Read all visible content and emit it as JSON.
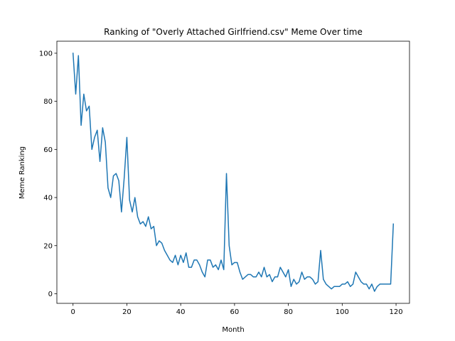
{
  "chart_data": {
    "type": "line",
    "title": "Ranking of \"Overly Attached Girlfriend.csv\" Meme Over time",
    "xlabel": "Month",
    "ylabel": "Meme Ranking",
    "xlim": [
      -6,
      125
    ],
    "ylim": [
      -4,
      105
    ],
    "xticks": [
      0,
      20,
      40,
      60,
      80,
      100,
      120
    ],
    "yticks": [
      0,
      20,
      40,
      60,
      80,
      100
    ],
    "grid": false,
    "series": [
      {
        "color": "#1f77b4",
        "x": [
          0,
          1,
          2,
          3,
          4,
          5,
          6,
          7,
          8,
          9,
          10,
          11,
          12,
          13,
          14,
          15,
          16,
          17,
          18,
          19,
          20,
          21,
          22,
          23,
          24,
          25,
          26,
          27,
          28,
          29,
          30,
          31,
          32,
          33,
          34,
          35,
          36,
          37,
          38,
          39,
          40,
          41,
          42,
          43,
          44,
          45,
          46,
          47,
          48,
          49,
          50,
          51,
          52,
          53,
          54,
          55,
          56,
          57,
          58,
          59,
          60,
          61,
          62,
          63,
          64,
          65,
          66,
          67,
          68,
          69,
          70,
          71,
          72,
          73,
          74,
          75,
          76,
          77,
          78,
          79,
          80,
          81,
          82,
          83,
          84,
          85,
          86,
          87,
          88,
          89,
          90,
          91,
          92,
          93,
          94,
          95,
          96,
          97,
          98,
          99,
          100,
          101,
          102,
          103,
          104,
          105,
          106,
          107,
          108,
          109,
          110,
          111,
          112,
          113,
          114,
          115,
          116,
          117,
          118,
          119
        ],
        "y": [
          100,
          83,
          99,
          70,
          83,
          76,
          78,
          60,
          65,
          68,
          55,
          69,
          63,
          44,
          40,
          49,
          50,
          47,
          34,
          48,
          65,
          39,
          34,
          40,
          32,
          29,
          30,
          28,
          32,
          27,
          28,
          20,
          22,
          21,
          18,
          16,
          14,
          13,
          16,
          12,
          16,
          13,
          17,
          11,
          11,
          14,
          14,
          12,
          9,
          7,
          14,
          14,
          11,
          12,
          10,
          14,
          10,
          50,
          20,
          12,
          13,
          13,
          9,
          6,
          7,
          8,
          8,
          7,
          7,
          9,
          7,
          11,
          7,
          8,
          5,
          7,
          7,
          11,
          9,
          7,
          10,
          3,
          6,
          4,
          5,
          9,
          6,
          7,
          7,
          6,
          4,
          5,
          18,
          6,
          4,
          3,
          2,
          3,
          3,
          3,
          4,
          4,
          5,
          3,
          4,
          9,
          7,
          5,
          4,
          4,
          2,
          4,
          1,
          3,
          4,
          4,
          4,
          4,
          4,
          29
        ]
      }
    ]
  }
}
